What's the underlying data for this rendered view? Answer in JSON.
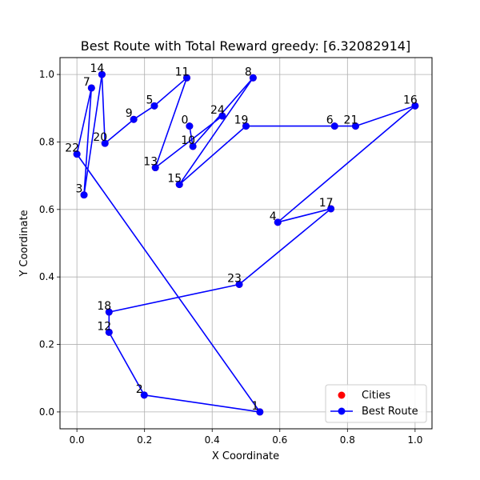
{
  "chart_data": {
    "type": "scatter",
    "title": "Best Route with Total Reward greedy: [6.32082914]",
    "xlabel": "X Coordinate",
    "ylabel": "Y Coordinate",
    "xlim": [
      -0.05,
      1.05
    ],
    "ylim": [
      -0.05,
      1.05
    ],
    "xticks": [
      "0.0",
      "0.2",
      "0.4",
      "0.6",
      "0.8",
      "1.0"
    ],
    "yticks": [
      "0.0",
      "0.2",
      "0.4",
      "0.6",
      "0.8",
      "1.0"
    ],
    "grid": true,
    "legend_position": "lower-right",
    "legend": [
      "Cities",
      "Best Route"
    ],
    "cities_color": "#ff0000",
    "route_color": "#0000ff",
    "cities": [
      {
        "id": "0",
        "x": 0.333,
        "y": 0.847
      },
      {
        "id": "1",
        "x": 0.541,
        "y": 0.0
      },
      {
        "id": "2",
        "x": 0.199,
        "y": 0.05
      },
      {
        "id": "3",
        "x": 0.021,
        "y": 0.643
      },
      {
        "id": "4",
        "x": 0.594,
        "y": 0.562
      },
      {
        "id": "5",
        "x": 0.229,
        "y": 0.907
      },
      {
        "id": "6",
        "x": 0.762,
        "y": 0.847
      },
      {
        "id": "7",
        "x": 0.043,
        "y": 0.96
      },
      {
        "id": "8",
        "x": 0.521,
        "y": 0.99
      },
      {
        "id": "9",
        "x": 0.168,
        "y": 0.867
      },
      {
        "id": "10",
        "x": 0.343,
        "y": 0.787
      },
      {
        "id": "11",
        "x": 0.325,
        "y": 0.99
      },
      {
        "id": "12",
        "x": 0.095,
        "y": 0.236
      },
      {
        "id": "13",
        "x": 0.232,
        "y": 0.724
      },
      {
        "id": "14",
        "x": 0.074,
        "y": 1.0
      },
      {
        "id": "15",
        "x": 0.303,
        "y": 0.674
      },
      {
        "id": "16",
        "x": 1.0,
        "y": 0.907
      },
      {
        "id": "17",
        "x": 0.751,
        "y": 0.602
      },
      {
        "id": "18",
        "x": 0.095,
        "y": 0.296
      },
      {
        "id": "19",
        "x": 0.5,
        "y": 0.847
      },
      {
        "id": "20",
        "x": 0.083,
        "y": 0.796
      },
      {
        "id": "21",
        "x": 0.824,
        "y": 0.847
      },
      {
        "id": "22",
        "x": 0.0,
        "y": 0.764
      },
      {
        "id": "23",
        "x": 0.48,
        "y": 0.378
      },
      {
        "id": "24",
        "x": 0.43,
        "y": 0.877
      }
    ],
    "route": [
      "0",
      "10",
      "8",
      "15",
      "19",
      "6",
      "21",
      "16",
      "4",
      "17",
      "23",
      "18",
      "12",
      "2",
      "1",
      "22",
      "7",
      "3",
      "14",
      "20",
      "9",
      "5",
      "11",
      "13",
      "24"
    ]
  }
}
